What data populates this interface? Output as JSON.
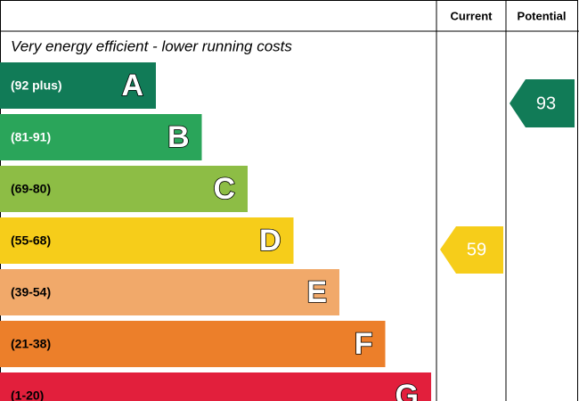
{
  "header": {
    "current": "Current",
    "potential": "Potential"
  },
  "note": "Very energy efficient - lower running costs",
  "bands": [
    {
      "range": "(92 plus)",
      "letter": "A",
      "color": "#117b57",
      "text_color": "#ffffff"
    },
    {
      "range": "(81-91)",
      "letter": "B",
      "color": "#2aa55a",
      "text_color": "#ffffff"
    },
    {
      "range": "(69-80)",
      "letter": "C",
      "color": "#8dbd45",
      "text_color": "#000000"
    },
    {
      "range": "(55-68)",
      "letter": "D",
      "color": "#f6cd1a",
      "text_color": "#000000"
    },
    {
      "range": "(39-54)",
      "letter": "E",
      "color": "#f1a96a",
      "text_color": "#000000"
    },
    {
      "range": "(21-38)",
      "letter": "F",
      "color": "#ec7f2a",
      "text_color": "#000000"
    },
    {
      "range": "(1-20)",
      "letter": "G",
      "color": "#e21f3c",
      "text_color": "#000000"
    }
  ],
  "current": {
    "value": 59,
    "color": "#f6cd1a"
  },
  "potential": {
    "value": 93,
    "color": "#117b57"
  }
}
